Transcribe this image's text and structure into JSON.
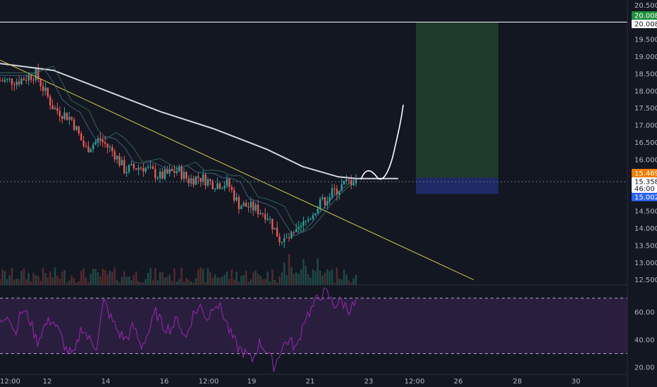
{
  "chart_data": [
    {
      "type": "candlestick",
      "panel": "price",
      "y_axis_ticks": [
        12.5,
        13.0,
        13.5,
        14.0,
        14.5,
        15.0,
        15.5,
        16.0,
        16.5,
        17.0,
        17.5,
        18.0,
        18.5,
        19.0,
        19.5,
        20.0,
        20.5
      ],
      "y_axis_tick_labels": [
        "12.500",
        "13.000",
        "13.500",
        "14.000",
        "14.500",
        "15.000",
        "15.500",
        "16.000",
        "16.500",
        "17.000",
        "17.500",
        "18.000",
        "18.500",
        "19.000",
        "19.500",
        "20.000",
        "20.500"
      ],
      "ylim": [
        12.35,
        20.65
      ],
      "x_axis_ticks": [
        "12:00",
        "12",
        "14",
        "16",
        "12:00",
        "19",
        "21",
        "23",
        "12:00",
        "26",
        "28",
        "30"
      ],
      "close_path": [
        [
          0,
          18.3
        ],
        [
          0.05,
          18.3
        ],
        [
          0.1,
          18.5
        ],
        [
          0.15,
          17.5
        ],
        [
          0.2,
          17.2
        ],
        [
          0.24,
          16.3
        ],
        [
          0.28,
          16.6
        ],
        [
          0.32,
          16.2
        ],
        [
          0.35,
          15.7
        ],
        [
          0.4,
          15.8
        ],
        [
          0.45,
          15.5
        ],
        [
          0.5,
          15.7
        ],
        [
          0.53,
          15.4
        ],
        [
          0.56,
          15.5
        ],
        [
          0.6,
          15.3
        ],
        [
          0.64,
          15.3
        ],
        [
          0.67,
          14.7
        ],
        [
          0.71,
          14.6
        ],
        [
          0.75,
          14.4
        ],
        [
          0.79,
          13.6
        ],
        [
          0.83,
          13.8
        ],
        [
          0.86,
          14.2
        ],
        [
          0.89,
          14.6
        ],
        [
          0.93,
          15.0
        ],
        [
          0.97,
          15.3
        ],
        [
          1.0,
          15.45
        ]
      ],
      "moving_average_white": [
        [
          0,
          18.8
        ],
        [
          0.15,
          18.6
        ],
        [
          0.3,
          18.0
        ],
        [
          0.45,
          17.4
        ],
        [
          0.6,
          16.9
        ],
        [
          0.75,
          16.3
        ],
        [
          0.85,
          15.8
        ],
        [
          0.95,
          15.5
        ],
        [
          1.0,
          15.45
        ]
      ],
      "trendline_yellow": {
        "from": [
          0,
          18.9
        ],
        "to": [
          1.0,
          12.5
        ]
      },
      "horizontal_line_white": 20.008,
      "price_tags": [
        {
          "label": "20.008",
          "value": 20.008,
          "color": "#1e8f3c"
        },
        {
          "label": "20.008",
          "value": 20.008,
          "color": "#ffffff"
        },
        {
          "label": "15.469",
          "value": 15.469,
          "color": "#f57c00"
        },
        {
          "label": "15.358",
          "value": 15.358,
          "color": "#ffffff"
        },
        {
          "label": "46:00",
          "value": 15.2,
          "color": "#ffffff"
        },
        {
          "label": "15.002",
          "value": 15.002,
          "color": "#2962ff"
        }
      ],
      "long_position": {
        "entry": 15.469,
        "target": 20.008,
        "stop": 15.002
      },
      "colors": {
        "up": "#26a69a",
        "down": "#ef5350",
        "ma": "#d1d4dc",
        "trend": "#d4c94a",
        "target_zone": "#1e3b2c",
        "stop_zone": "#1d2a66"
      }
    },
    {
      "type": "line",
      "panel": "indicator",
      "name": "",
      "y_axis_ticks": [
        20.0,
        40.0,
        60.0
      ],
      "y_axis_tick_labels": [
        "20.00",
        "40.00",
        "60.00"
      ],
      "ylim": [
        15,
        78
      ],
      "bands": [
        70,
        30
      ],
      "values_approx": [
        52,
        60,
        45,
        62,
        55,
        38,
        50,
        55,
        45,
        32,
        28,
        50,
        40,
        35,
        68,
        55,
        45,
        40,
        50,
        35,
        45,
        60,
        50,
        48,
        55,
        40,
        58,
        64,
        55,
        68,
        60,
        45,
        35,
        30,
        25,
        38,
        32,
        20,
        35,
        40,
        33,
        55,
        62,
        72,
        74,
        65,
        68,
        62,
        66
      ],
      "colors": {
        "line": "#9c27b0",
        "band_fill": "#2a1e3f"
      }
    }
  ]
}
